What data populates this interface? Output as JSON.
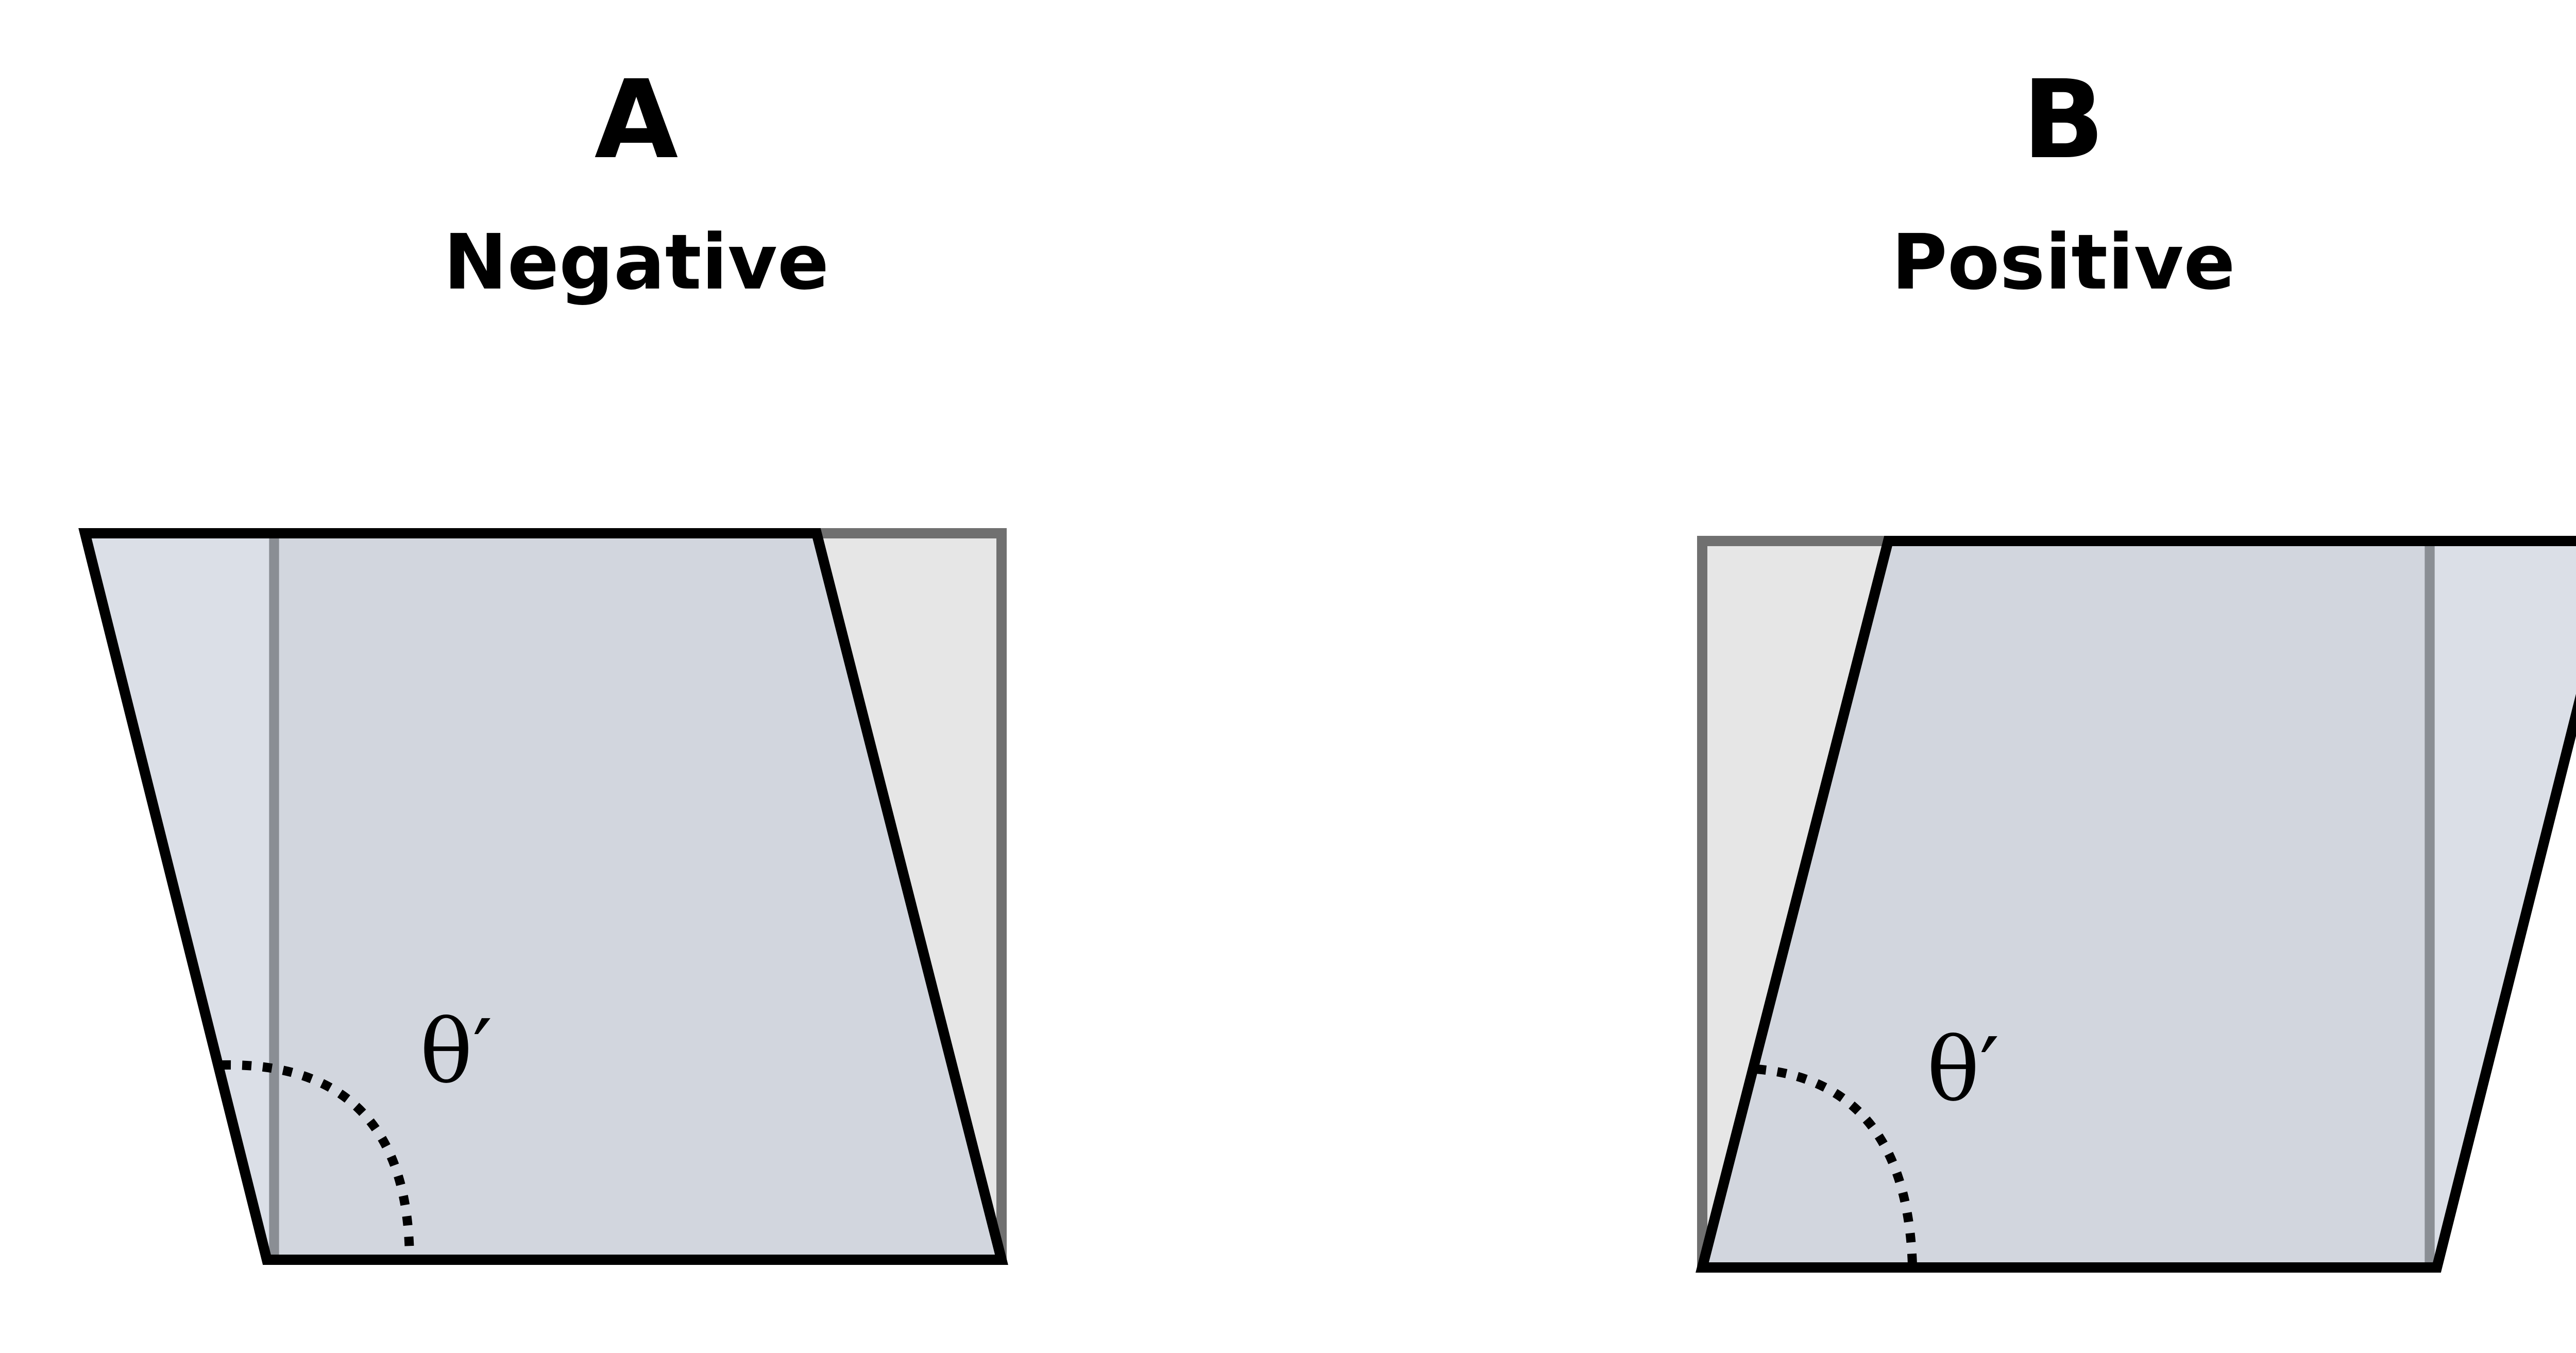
{
  "panels": [
    {
      "letter": "A",
      "title": "Negative",
      "angle_label": "θ′"
    },
    {
      "letter": "B",
      "title": "Positive",
      "angle_label": "θ′"
    }
  ],
  "colors": {
    "original_square_fill": "#e6e6e6",
    "original_square_stroke": "#707070",
    "sheared_fill": "#d0d6de",
    "overlap_fill": "#d0d4da",
    "sheared_stroke": "#000000",
    "text": "#000000"
  }
}
